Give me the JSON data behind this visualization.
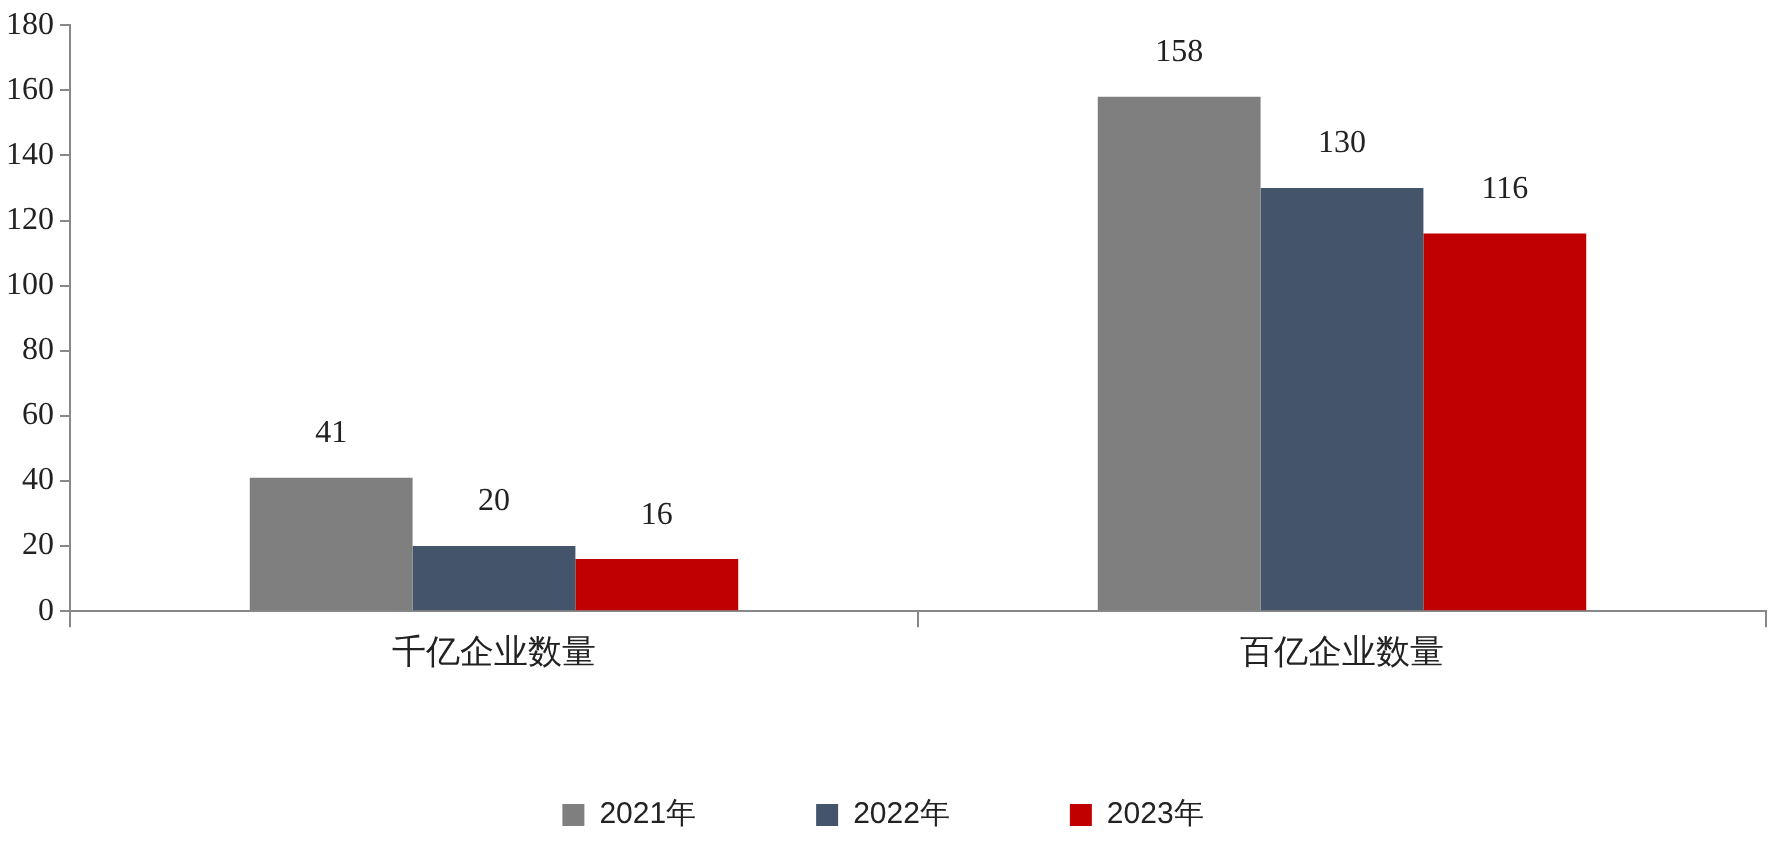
{
  "chart_data": {
    "type": "bar",
    "categories": [
      "千亿企业数量",
      "百亿企业数量"
    ],
    "series": [
      {
        "name": "2021年",
        "color": "#7f7f7f",
        "values": [
          41,
          158
        ]
      },
      {
        "name": "2022年",
        "color": "#44546a",
        "values": [
          20,
          130
        ]
      },
      {
        "name": "2023年",
        "color": "#c00000",
        "values": [
          16,
          116
        ]
      }
    ],
    "ylim": [
      0,
      180
    ],
    "yticks": [
      0,
      20,
      40,
      60,
      80,
      100,
      120,
      140,
      160,
      180
    ],
    "data_labels": true,
    "grid": false,
    "legend": "bottom"
  }
}
